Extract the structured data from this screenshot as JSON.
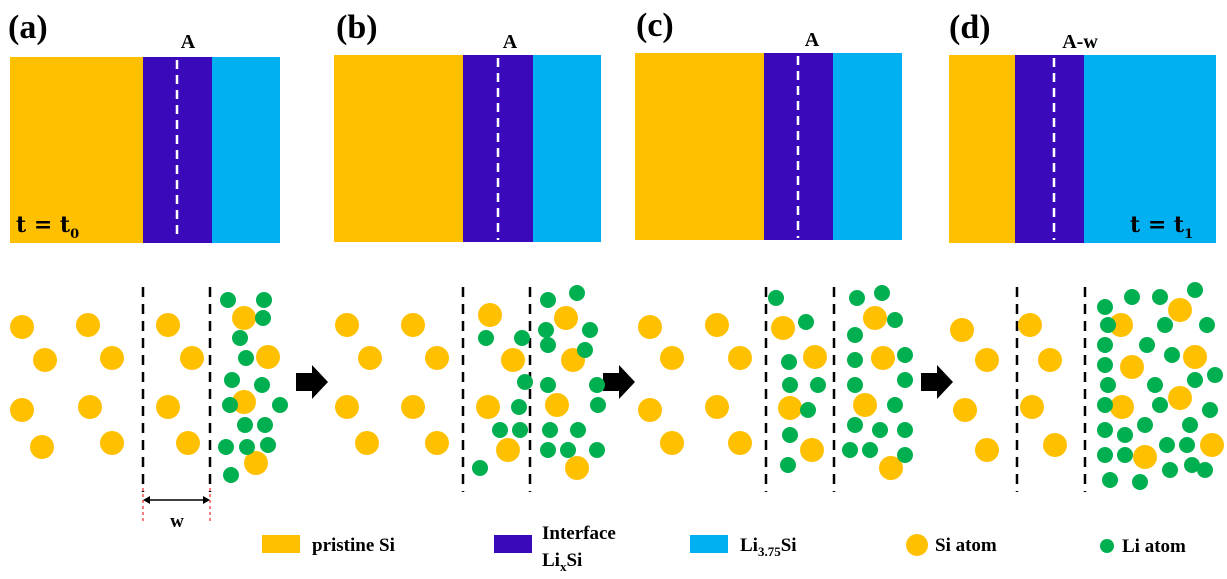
{
  "panels": [
    {
      "label": "(a)",
      "marker": "A"
    },
    {
      "label": "(b)",
      "marker": "A"
    },
    {
      "label": "(c)",
      "marker": "A"
    },
    {
      "label": "(d)",
      "marker": "A-w"
    }
  ],
  "times": [
    {
      "text": "t = t",
      "sub": "0"
    },
    {
      "text": "t = t",
      "sub": "1"
    }
  ],
  "width_label": "w",
  "legend": {
    "pristine": "pristine Si",
    "interface": {
      "line1": "Interface",
      "text": "Li",
      "sub": "x",
      "tail": "Si"
    },
    "product": {
      "text": "Li",
      "sub": "3.75",
      "tail": "Si"
    },
    "si_atom": "Si atom",
    "li_atom": "Li atom"
  }
}
